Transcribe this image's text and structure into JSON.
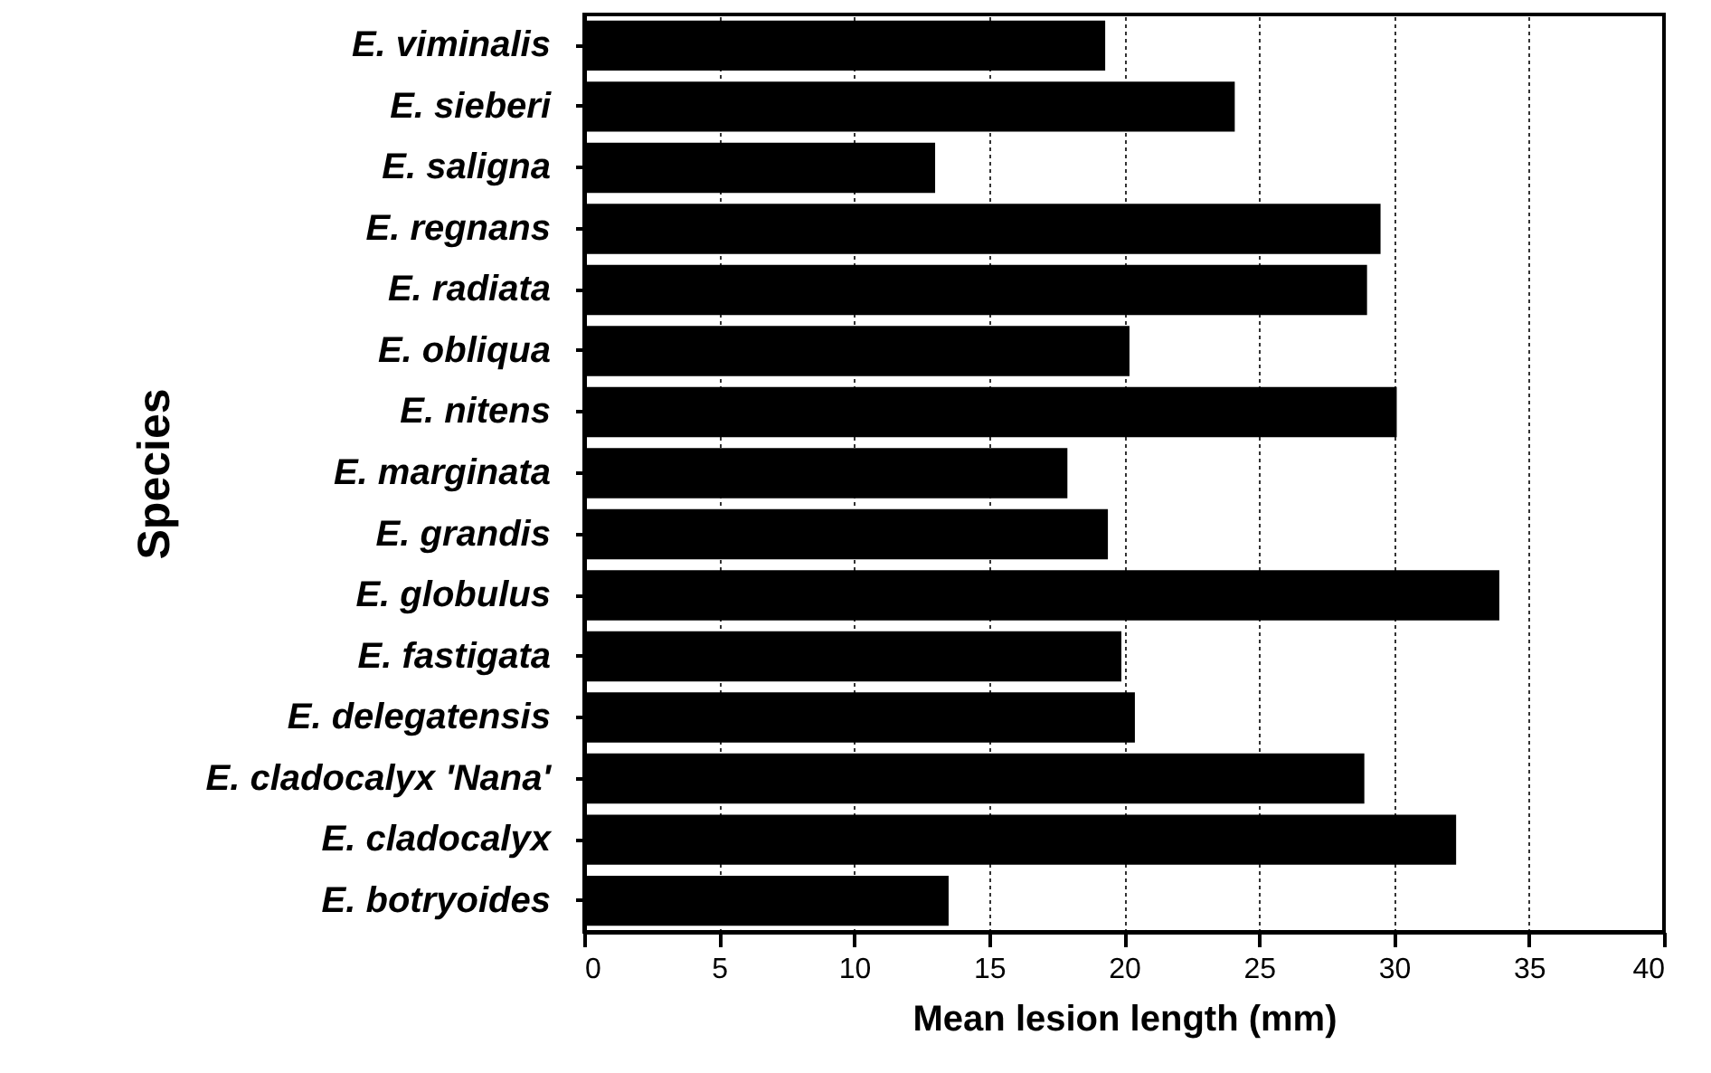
{
  "chart_data": {
    "type": "bar",
    "orientation": "horizontal",
    "ylabel": "Species",
    "xlabel": "Mean lesion length (mm)",
    "categories": [
      "E. viminalis",
      "E. sieberi",
      "E. saligna",
      "E. regnans",
      "E. radiata",
      "E. obliqua",
      "E. nitens",
      "E. marginata",
      "E. grandis",
      "E. globulus",
      "E. fastigata",
      "E. delegatensis",
      "E. cladocalyx 'Nana'",
      "E. cladocalyx",
      "E. botryoides"
    ],
    "values": [
      19.3,
      24.1,
      13.0,
      29.5,
      29.0,
      20.2,
      30.1,
      17.9,
      19.4,
      33.9,
      19.9,
      20.4,
      28.9,
      32.3,
      13.5
    ],
    "color": "#000000",
    "xlim": [
      0,
      40
    ],
    "xticks": [
      0,
      5,
      10,
      15,
      20,
      25,
      30,
      35,
      40
    ],
    "grid": "x"
  }
}
